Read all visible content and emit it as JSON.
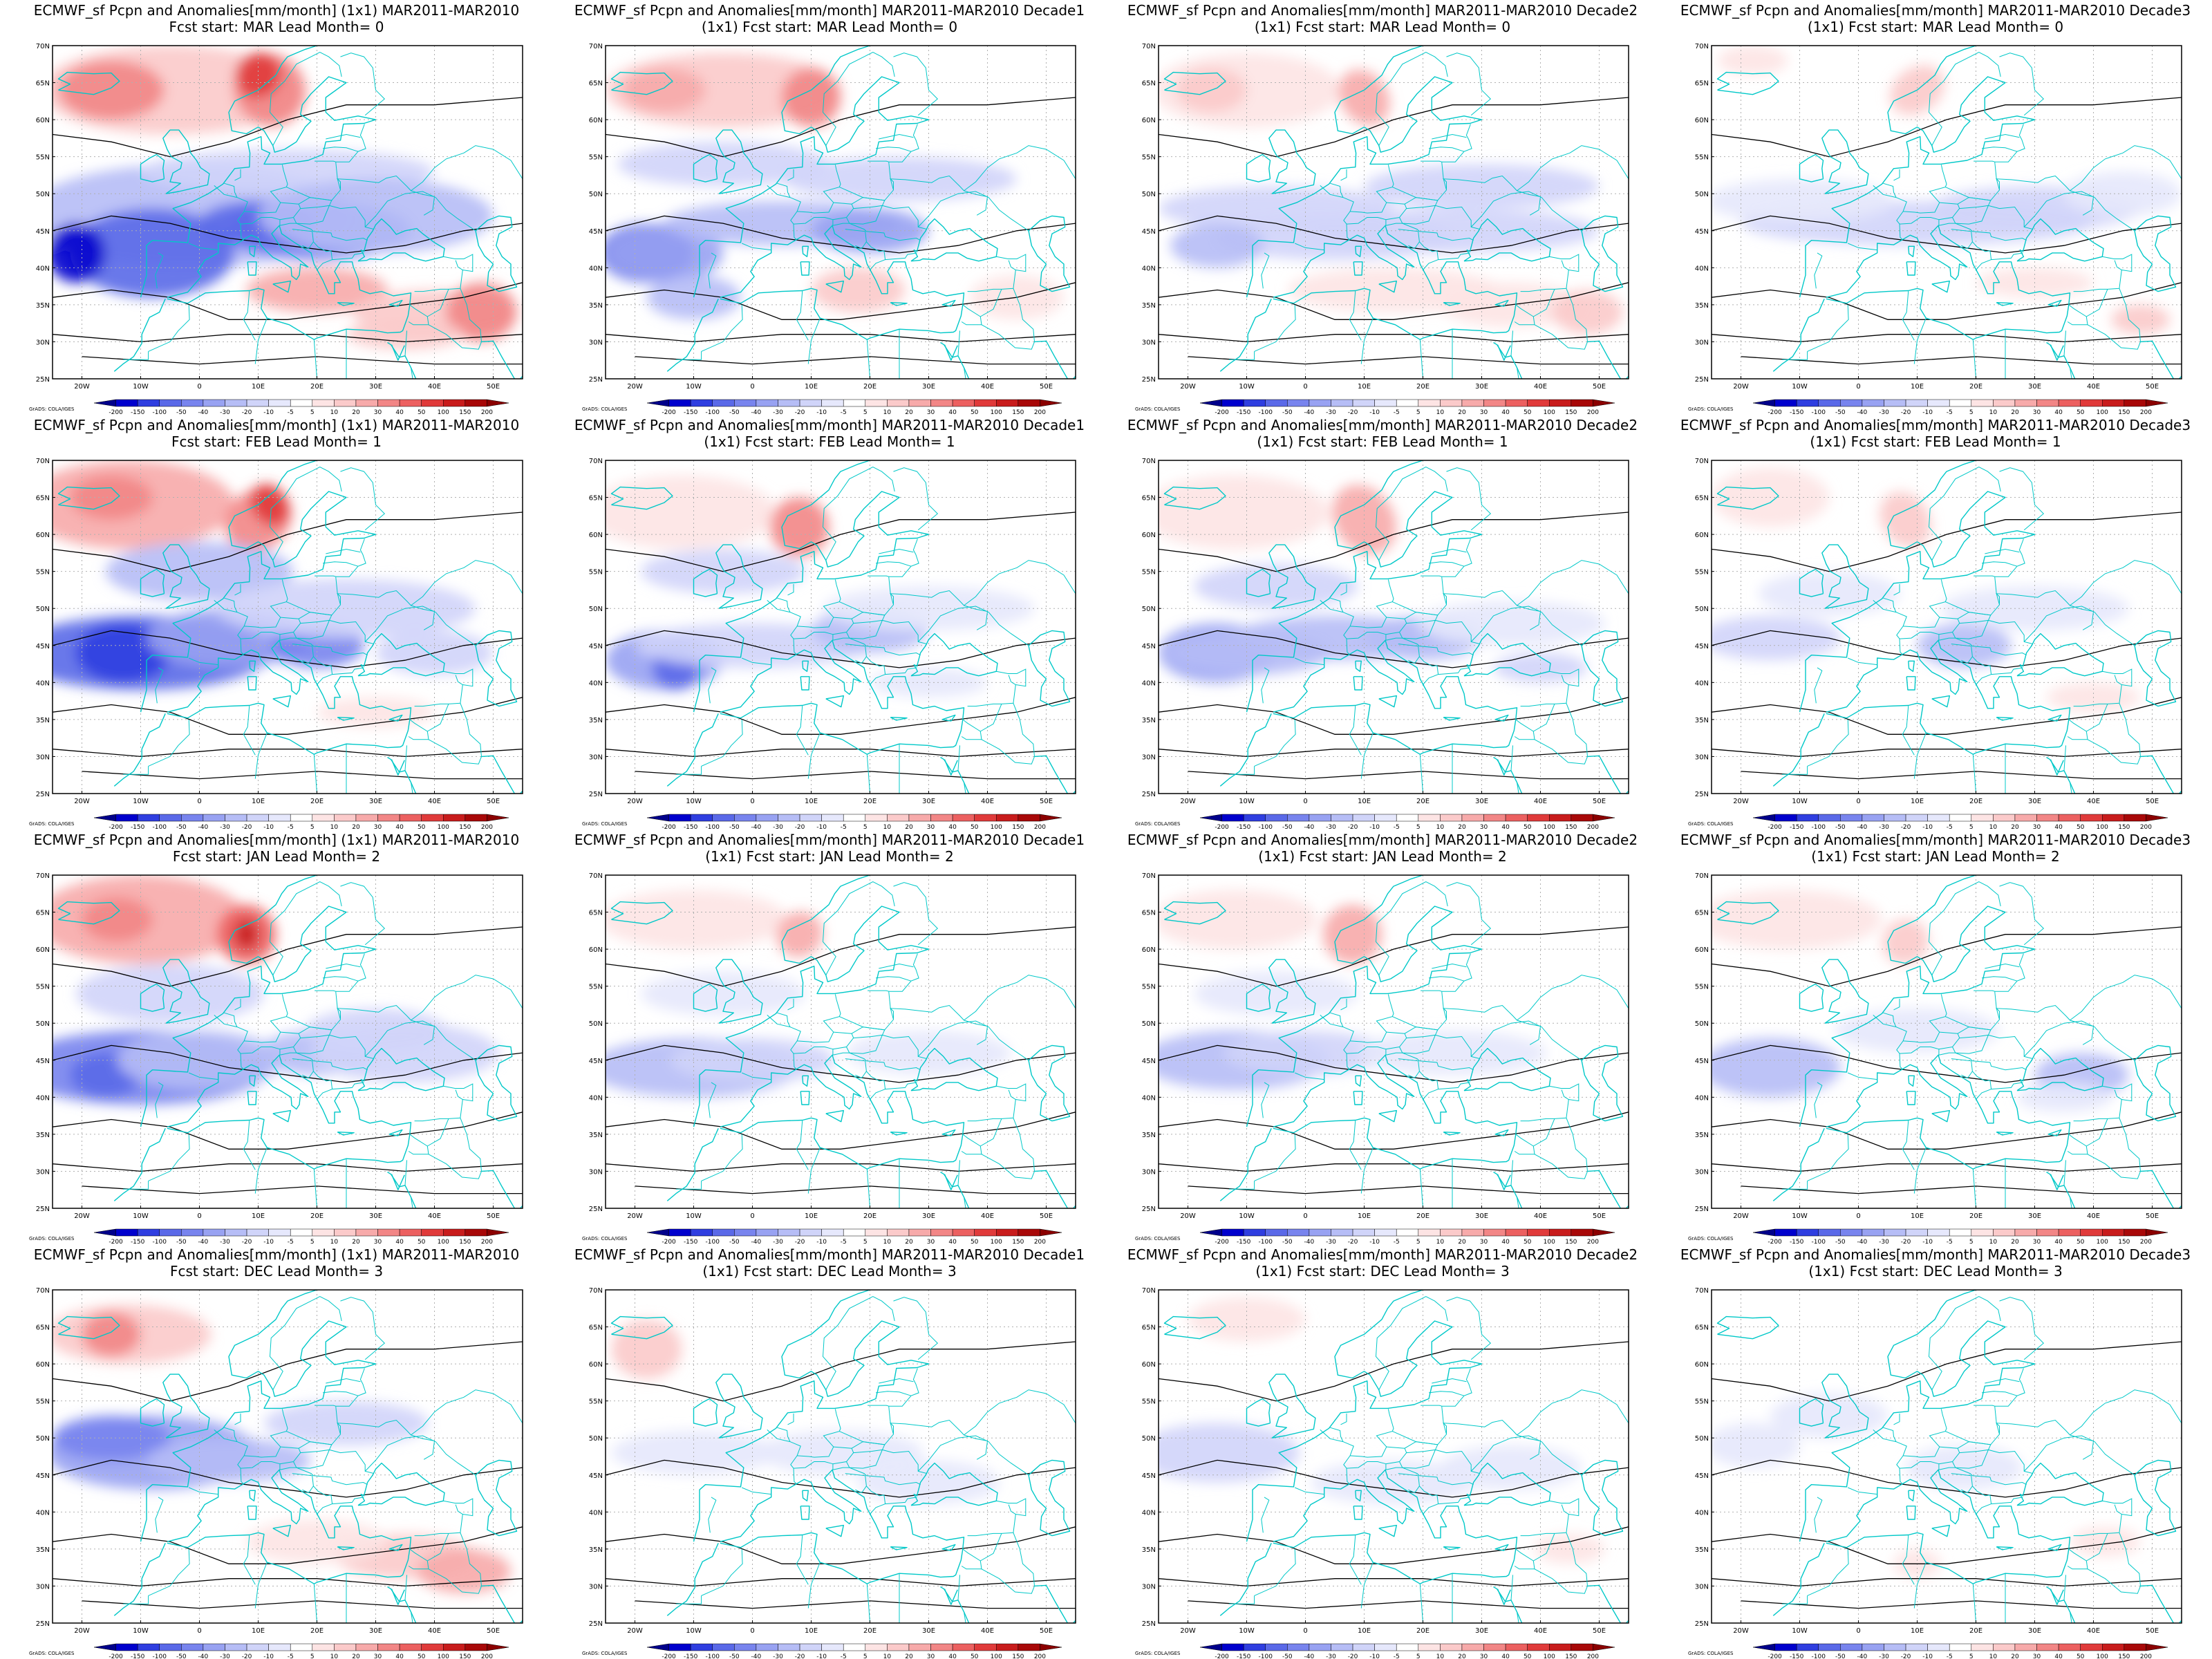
{
  "figure": {
    "title_prefix": "ECMWF_sf Pcpn and Anomalies[mm/month] (1x1) MAR2011-MAR2010",
    "title_prefix_decade": "ECMWF_sf Pcpn and Anomalies[mm/month] MAR2011-MAR2010",
    "credit": "GrADS: COLA/IGES"
  },
  "rows": [
    {
      "line2_monthly": "Fcst start: MAR  Lead Month= 0",
      "line2_decade": "(1x1) Fcst start: MAR  Lead Month= 0"
    },
    {
      "line2_monthly": "Fcst start: FEB  Lead Month= 1",
      "line2_decade": "(1x1) Fcst start: FEB  Lead Month= 1"
    },
    {
      "line2_monthly": "Fcst start: JAN  Lead Month= 2",
      "line2_decade": "(1x1) Fcst start: JAN  Lead Month= 2"
    },
    {
      "line2_monthly": "Fcst start: DEC  Lead Month= 3",
      "line2_decade": "(1x1) Fcst start: DEC  Lead Month= 3"
    }
  ],
  "panels": [
    {
      "title1": "ECMWF_sf Pcpn and Anomalies[mm/month] (1x1) MAR2011-MAR2010",
      "title2": "Fcst start: MAR  Lead Month= 0"
    },
    {
      "title1": "ECMWF_sf Pcpn and Anomalies[mm/month] MAR2011-MAR2010 Decade1",
      "title2": "(1x1) Fcst start: MAR  Lead Month= 0"
    },
    {
      "title1": "ECMWF_sf Pcpn and Anomalies[mm/month] MAR2011-MAR2010 Decade2",
      "title2": "(1x1) Fcst start: MAR  Lead Month= 0"
    },
    {
      "title1": "ECMWF_sf Pcpn and Anomalies[mm/month] MAR2011-MAR2010 Decade3",
      "title2": "(1x1) Fcst start: MAR  Lead Month= 0"
    },
    {
      "title1": "ECMWF_sf Pcpn and Anomalies[mm/month] (1x1) MAR2011-MAR2010",
      "title2": "Fcst start: FEB  Lead Month= 1"
    },
    {
      "title1": "ECMWF_sf Pcpn and Anomalies[mm/month] MAR2011-MAR2010 Decade1",
      "title2": "(1x1) Fcst start: FEB  Lead Month= 1"
    },
    {
      "title1": "ECMWF_sf Pcpn and Anomalies[mm/month] MAR2011-MAR2010 Decade2",
      "title2": "(1x1) Fcst start: FEB  Lead Month= 1"
    },
    {
      "title1": "ECMWF_sf Pcpn and Anomalies[mm/month] MAR2011-MAR2010 Decade3",
      "title2": "(1x1) Fcst start: FEB  Lead Month= 1"
    },
    {
      "title1": "ECMWF_sf Pcpn and Anomalies[mm/month] (1x1) MAR2011-MAR2010",
      "title2": "Fcst start: JAN  Lead Month= 2"
    },
    {
      "title1": "ECMWF_sf Pcpn and Anomalies[mm/month] MAR2011-MAR2010 Decade1",
      "title2": "(1x1) Fcst start: JAN  Lead Month= 2"
    },
    {
      "title1": "ECMWF_sf Pcpn and Anomalies[mm/month] MAR2011-MAR2010 Decade2",
      "title2": "(1x1) Fcst start: JAN  Lead Month= 2"
    },
    {
      "title1": "ECMWF_sf Pcpn and Anomalies[mm/month] MAR2011-MAR2010 Decade3",
      "title2": "(1x1) Fcst start: JAN  Lead Month= 2"
    },
    {
      "title1": "ECMWF_sf Pcpn and Anomalies[mm/month] (1x1) MAR2011-MAR2010",
      "title2": "Fcst start: DEC  Lead Month= 3"
    },
    {
      "title1": "ECMWF_sf Pcpn and Anomalies[mm/month] MAR2011-MAR2010 Decade1",
      "title2": "(1x1) Fcst start: DEC  Lead Month= 3"
    },
    {
      "title1": "ECMWF_sf Pcpn and Anomalies[mm/month] MAR2011-MAR2010 Decade2",
      "title2": "(1x1) Fcst start: DEC  Lead Month= 3"
    },
    {
      "title1": "ECMWF_sf Pcpn and Anomalies[mm/month] MAR2011-MAR2010 Decade3",
      "title2": "(1x1) Fcst start: DEC  Lead Month= 3"
    }
  ],
  "map": {
    "lon_range": [
      -25,
      55
    ],
    "lat_range": [
      25,
      70
    ],
    "lon_labels": [
      "20W",
      "10W",
      "0",
      "10E",
      "20E",
      "30E",
      "40E",
      "50E"
    ],
    "lat_labels": [
      "25N",
      "30N",
      "35N",
      "40N",
      "45N",
      "50N",
      "55N",
      "60N",
      "65N",
      "70N"
    ],
    "coastline_color": "#00c8c8",
    "contour_color": "#000000",
    "grid_color": "#b0b0b0"
  },
  "colorbar": {
    "labels": [
      "-200",
      "-150",
      "-100",
      "-50",
      "-40",
      "-30",
      "-20",
      "-10",
      "-5",
      "5",
      "10",
      "20",
      "30",
      "40",
      "50",
      "100",
      "150",
      "200"
    ],
    "colors": [
      "#00008b",
      "#0000cd",
      "#2f3ee0",
      "#5a69e8",
      "#7884ee",
      "#98a2f2",
      "#b6bdf6",
      "#d0d4f9",
      "#e6e8fc",
      "#ffffff",
      "#fde4e4",
      "#fbcaca",
      "#f7aaaa",
      "#f28686",
      "#ec6060",
      "#e03a3a",
      "#c81c1c",
      "#a80808",
      "#8b0000"
    ]
  }
}
